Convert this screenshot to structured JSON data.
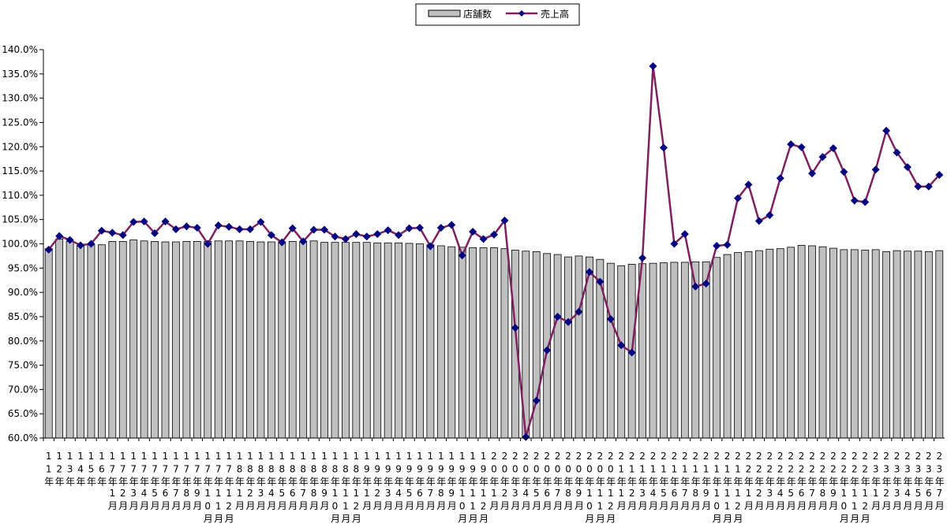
{
  "chart_data": {
    "type": "bar-line",
    "categories": [
      "11年",
      "12年",
      "13年",
      "14年",
      "15年",
      "16年",
      "17年1月",
      "17年2月",
      "17年3月",
      "17年4月",
      "17年5月",
      "17年6月",
      "17年7月",
      "17年8月",
      "17年9月",
      "17年10月",
      "17年11月",
      "17年12月",
      "18年1月",
      "18年2月",
      "18年3月",
      "18年4月",
      "18年5月",
      "18年6月",
      "18年7月",
      "18年8月",
      "18年9月",
      "18年10月",
      "18年11月",
      "18年12月",
      "19年1月",
      "19年2月",
      "19年3月",
      "19年4月",
      "19年5月",
      "19年6月",
      "19年7月",
      "19年8月",
      "19年9月",
      "19年10月",
      "19年11月",
      "19年12月",
      "20年1月",
      "20年2月",
      "20年3月",
      "20年4月",
      "20年5月",
      "20年6月",
      "20年7月",
      "20年8月",
      "20年9月",
      "20年10月",
      "20年11月",
      "20年12月",
      "21年1月",
      "21年2月",
      "21年3月",
      "21年4月",
      "21年5月",
      "21年6月",
      "21年7月",
      "21年8月",
      "21年9月",
      "21年10月",
      "21年11月",
      "21年12月",
      "22年1月",
      "22年2月",
      "22年3月",
      "22年4月",
      "22年5月",
      "22年6月",
      "22年7月",
      "22年8月",
      "22年9月",
      "22年10月",
      "22年11月",
      "22年12月",
      "23年1月",
      "23年2月",
      "23年3月",
      "23年4月",
      "23年5月",
      "23年6月",
      "23年7月"
    ],
    "series": [
      {
        "name": "店舗数",
        "type": "bar",
        "color": "#c0c0c0",
        "values": [
          99.0,
          101.0,
          100.5,
          99.5,
          99.8,
          99.8,
          100.5,
          100.5,
          100.8,
          100.6,
          100.5,
          100.4,
          100.4,
          100.5,
          100.5,
          100.5,
          100.6,
          100.6,
          100.6,
          100.5,
          100.4,
          100.4,
          100.4,
          100.5,
          100.4,
          100.6,
          100.3,
          100.3,
          100.3,
          100.3,
          100.3,
          100.2,
          100.2,
          100.2,
          100.1,
          100.0,
          99.8,
          99.6,
          99.4,
          99.3,
          99.2,
          99.2,
          99.2,
          99.0,
          98.7,
          98.5,
          98.4,
          98.0,
          97.8,
          97.3,
          97.5,
          97.3,
          96.8,
          96.0,
          95.5,
          95.8,
          95.9,
          96.0,
          96.1,
          96.2,
          96.2,
          96.3,
          96.3,
          97.2,
          97.8,
          98.2,
          98.4,
          98.6,
          98.9,
          99.0,
          99.3,
          99.7,
          99.6,
          99.4,
          99.1,
          98.8,
          98.8,
          98.7,
          98.8,
          98.4,
          98.6,
          98.5,
          98.5,
          98.4,
          98.6
        ]
      },
      {
        "name": "売上高",
        "type": "line",
        "color": "#7f2060",
        "marker_color": "#000080",
        "values": [
          98.8,
          101.6,
          100.8,
          99.7,
          100.0,
          102.7,
          102.3,
          101.8,
          104.5,
          104.6,
          102.2,
          104.6,
          103.0,
          103.6,
          103.3,
          100.0,
          103.8,
          103.5,
          103.0,
          103.0,
          104.5,
          101.8,
          100.3,
          103.2,
          100.5,
          102.9,
          102.9,
          101.5,
          101.0,
          102.0,
          101.5,
          102.0,
          102.8,
          101.8,
          103.2,
          103.3,
          99.5,
          103.3,
          103.9,
          97.6,
          102.5,
          101.0,
          101.9,
          104.8,
          82.7,
          60.2,
          67.7,
          78.1,
          85.0,
          83.9,
          86.0,
          94.2,
          92.2,
          84.5,
          79.1,
          77.6,
          97.1,
          136.6,
          119.8,
          100.0,
          102.0,
          91.2,
          91.8,
          99.6,
          99.8,
          109.4,
          112.2,
          104.7,
          105.9,
          113.5,
          120.5,
          119.9,
          114.5,
          117.9,
          119.7,
          114.8,
          108.9,
          108.6,
          115.3,
          123.3,
          118.8,
          115.8,
          111.8,
          111.8,
          114.2
        ]
      }
    ],
    "ylim": [
      60,
      140
    ],
    "yticks": [
      {
        "value": 60,
        "label": "60.0%"
      },
      {
        "value": 65,
        "label": "65.0%"
      },
      {
        "value": 70,
        "label": "70.0%"
      },
      {
        "value": 75,
        "label": "75.0%"
      },
      {
        "value": 80,
        "label": "80.0%"
      },
      {
        "value": 85,
        "label": "85.0%"
      },
      {
        "value": 90,
        "label": "90.0%"
      },
      {
        "value": 95,
        "label": "95.0%"
      },
      {
        "value": 100,
        "label": "100.0%"
      },
      {
        "value": 105,
        "label": "105.0%"
      },
      {
        "value": 110,
        "label": "110.0%"
      },
      {
        "value": 115,
        "label": "115.0%"
      },
      {
        "value": 120,
        "label": "120.0%"
      },
      {
        "value": 125,
        "label": "125.0%"
      },
      {
        "value": 130,
        "label": "130.0%"
      },
      {
        "value": 135,
        "label": "135.0%"
      },
      {
        "value": 140,
        "label": "140.0%"
      }
    ],
    "legend": "top"
  }
}
